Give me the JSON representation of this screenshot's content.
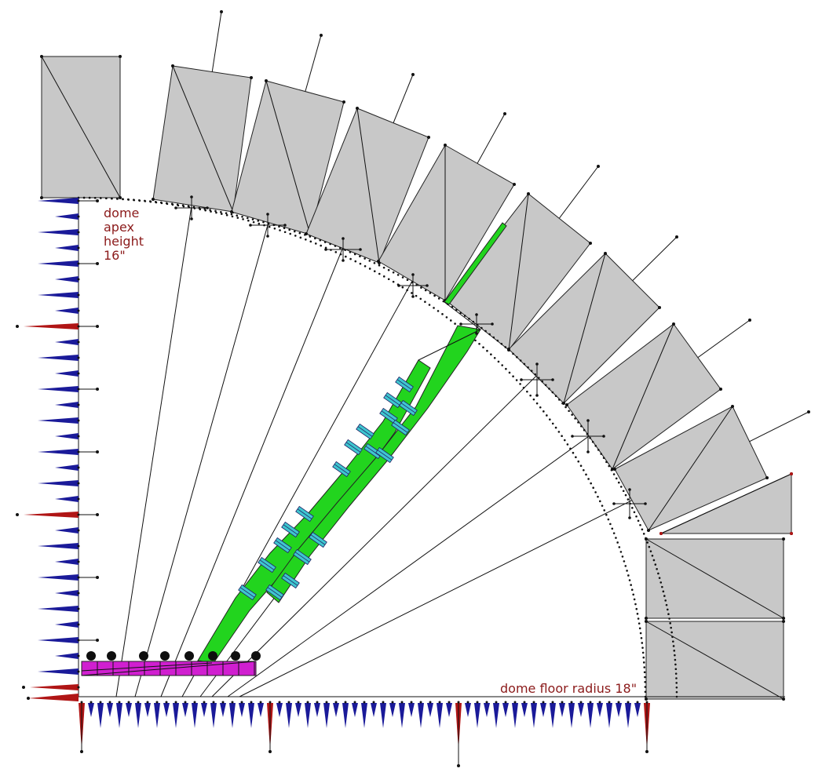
{
  "labels": {
    "apex": [
      "dome",
      "apex",
      "height",
      "16\""
    ],
    "floor": "dome floor radius 18\""
  },
  "colors": {
    "block": "#c8c8c8",
    "beam": "#22d41e",
    "clamp": "#3ec6cf",
    "base": "#d01fd0",
    "tick_major": "#b01515",
    "tick_minor": "#1a1a99",
    "text": "#8b1a1a"
  }
}
